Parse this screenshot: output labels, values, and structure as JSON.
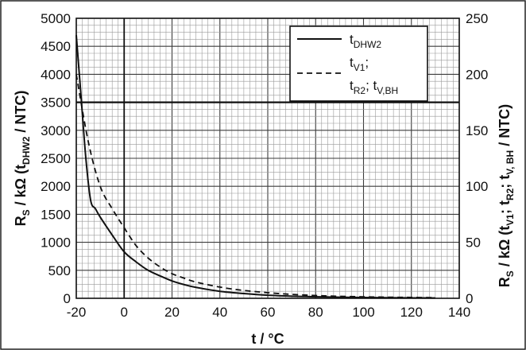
{
  "chart_data": {
    "type": "line",
    "xlabel": "t / °C",
    "ylabel_left": {
      "main": "R",
      "main_sub": "S",
      "rest": " / kΩ (t",
      "rest_sub": "DHW2",
      "tail": " / NTC)"
    },
    "ylabel_right": {
      "main": "R",
      "main_sub": "S",
      "p1": " / kΩ (t",
      "p1_sub": "V1",
      "p2": "; t",
      "p2_sub": "R2",
      "p3": "; t",
      "p3_sub": "V, BH",
      "tail": " / NTC)"
    },
    "xlim": [
      -20,
      140
    ],
    "ylim_left": [
      0,
      5000
    ],
    "ylim_right": [
      0,
      250
    ],
    "x_ticks": [
      "-20",
      "0",
      "20",
      "40",
      "60",
      "80",
      "100",
      "120",
      "140"
    ],
    "y_left_ticks": [
      "0",
      "500",
      "1000",
      "1500",
      "2000",
      "2500",
      "3000",
      "3500",
      "4000",
      "4500",
      "5000"
    ],
    "y_right_ticks": [
      "0",
      "50",
      "100",
      "150",
      "200",
      "250"
    ],
    "grid": true,
    "legend_position": "top-right",
    "series": [
      {
        "name": "t_DHW2",
        "axis": "left",
        "style": "solid",
        "x": [
          -20,
          -18,
          -16,
          -14,
          -12,
          -10,
          -5,
          0,
          5,
          10,
          15,
          20,
          25,
          30,
          40,
          50,
          60,
          70,
          80,
          90,
          100,
          110,
          120,
          130
        ],
        "y": [
          4700,
          3600,
          2500,
          1750,
          1600,
          1450,
          1130,
          830,
          650,
          500,
          400,
          310,
          245,
          195,
          125,
          85,
          55,
          38,
          27,
          20,
          15,
          11,
          8,
          6
        ]
      },
      {
        "name": "t_V1; t_R2; t_V,BH",
        "axis": "right",
        "style": "dashed",
        "x": [
          -20,
          -15,
          -10,
          -5,
          0,
          5,
          10,
          15,
          20,
          25,
          30,
          40,
          50,
          60,
          70,
          80,
          90,
          100,
          110,
          120,
          130
        ],
        "y": [
          200,
          140,
          100,
          80,
          63,
          47,
          36,
          28,
          22,
          18,
          14.5,
          10,
          7,
          5,
          3.5,
          2.5,
          1.8,
          1.3,
          1,
          0.8,
          0.6
        ]
      }
    ]
  },
  "legend": {
    "entry1": {
      "main": "t",
      "sub": "DHW2"
    },
    "entry2_line1": {
      "main": "t",
      "sub": "V1",
      "after": ";"
    },
    "entry2_line2": {
      "m1": "t",
      "s1": "R2",
      "m2": "; t",
      "s2": "V,BH"
    }
  }
}
